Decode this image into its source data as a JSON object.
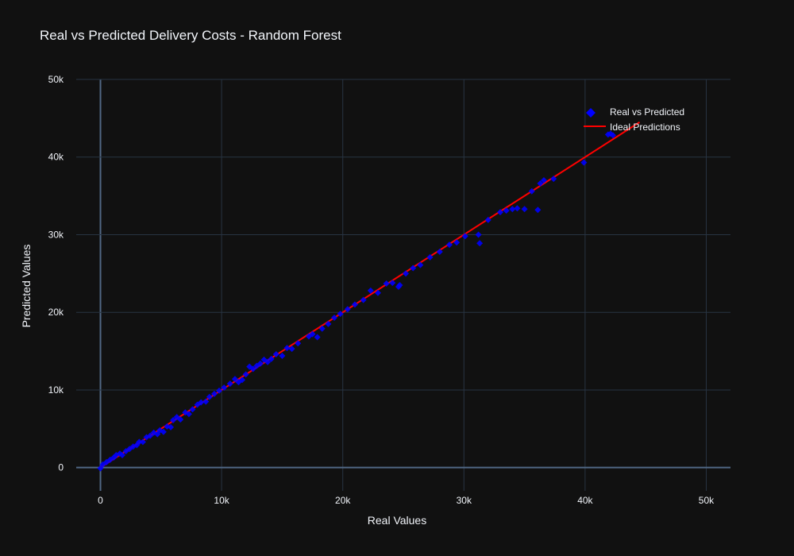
{
  "chart_data": {
    "type": "scatter",
    "title": "Real vs Predicted Delivery Costs - Random Forest",
    "xlabel": "Real Values",
    "ylabel": "Predicted Values",
    "xlim": [
      -2000,
      52000
    ],
    "ylim": [
      -3000,
      50000
    ],
    "xticks": [
      0,
      10000,
      20000,
      30000,
      40000,
      50000
    ],
    "xtick_labels": [
      "0",
      "10k",
      "20k",
      "30k",
      "40k",
      "50k"
    ],
    "yticks": [
      0,
      10000,
      20000,
      30000,
      40000,
      50000
    ],
    "ytick_labels": [
      "0",
      "10k",
      "20k",
      "30k",
      "40k",
      "50k"
    ],
    "grid": true,
    "legend_position": "top-right",
    "colors": {
      "background": "#111111",
      "grid": "#283442",
      "zeroline": "#506784",
      "scatter": "#0000ff",
      "ideal": "#ff0000",
      "text": "#f2f5fa"
    },
    "series": [
      {
        "name": "Real vs Predicted",
        "mode": "markers",
        "x": [
          0,
          200,
          500,
          800,
          1100,
          1300,
          1600,
          1800,
          2100,
          2400,
          2700,
          3000,
          3200,
          3500,
          3800,
          4100,
          4400,
          4700,
          4900,
          5200,
          5500,
          5800,
          6000,
          6300,
          6600,
          7000,
          7300,
          7600,
          8000,
          8300,
          8700,
          9000,
          9400,
          9800,
          10200,
          10700,
          11100,
          11400,
          11700,
          12000,
          12300,
          12600,
          12900,
          13200,
          13500,
          13800,
          14100,
          14500,
          15000,
          15400,
          15800,
          16300,
          17200,
          17500,
          17900,
          18300,
          18800,
          19300,
          19800,
          20400,
          21000,
          21700,
          22300,
          22900,
          23600,
          24100,
          24600,
          24700,
          25200,
          25800,
          26400,
          27200,
          28000,
          28800,
          29400,
          30100,
          31200,
          31300,
          32000,
          33000,
          33500,
          34000,
          34400,
          35000,
          35600,
          36100,
          36300,
          36600,
          37400,
          39900,
          41900,
          42100,
          42300
        ],
        "y": [
          -100,
          400,
          700,
          1000,
          1300,
          1600,
          1800,
          1600,
          2100,
          2400,
          2700,
          2900,
          3300,
          3300,
          3900,
          4100,
          4500,
          4300,
          4800,
          4600,
          5300,
          5200,
          6100,
          6500,
          6200,
          7100,
          6900,
          7500,
          8100,
          8400,
          8500,
          9100,
          9500,
          9900,
          10300,
          10800,
          11400,
          11000,
          11300,
          12000,
          13000,
          12700,
          13100,
          13400,
          13900,
          13600,
          14000,
          14600,
          14400,
          15400,
          15300,
          16000,
          16900,
          17200,
          16800,
          17900,
          18500,
          19300,
          19800,
          20400,
          21000,
          21600,
          22800,
          22500,
          23700,
          23800,
          23300,
          23500,
          25000,
          25700,
          26100,
          27100,
          27800,
          28700,
          29000,
          29800,
          30000,
          28900,
          31900,
          32900,
          33100,
          33300,
          33400,
          33300,
          35600,
          33200,
          36600,
          37000,
          37200,
          39300,
          42900,
          43000,
          42800
        ]
      },
      {
        "name": "Ideal Predictions",
        "mode": "lines",
        "x": [
          0,
          44500
        ],
        "y": [
          0,
          44500
        ]
      }
    ]
  }
}
